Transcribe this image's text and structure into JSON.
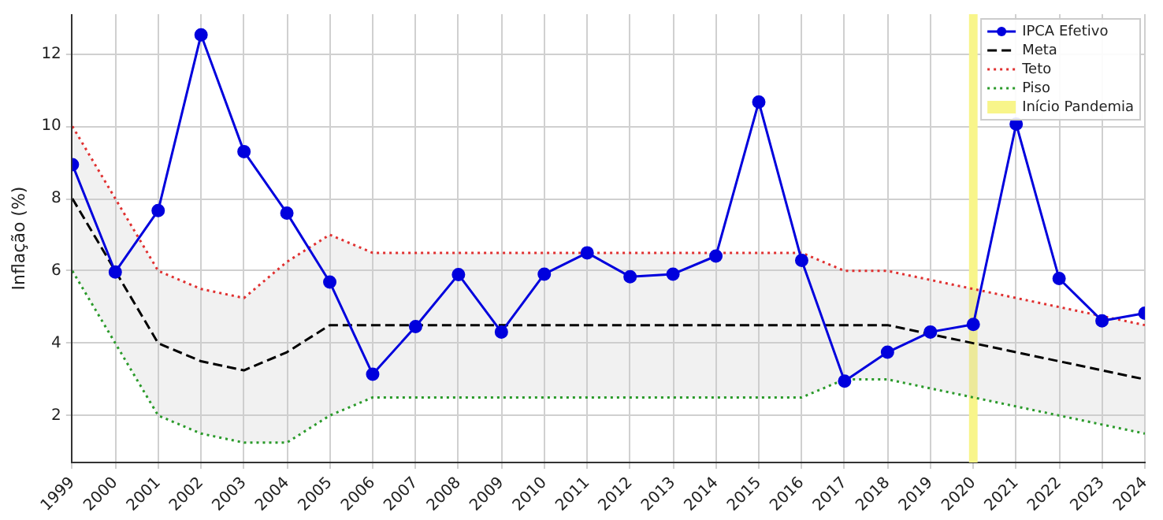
{
  "chart_data": {
    "type": "line",
    "ylabel": "Inflação (%)",
    "x": [
      1999,
      2000,
      2001,
      2002,
      2003,
      2004,
      2005,
      2006,
      2007,
      2008,
      2009,
      2010,
      2011,
      2012,
      2013,
      2014,
      2015,
      2016,
      2017,
      2018,
      2019,
      2020,
      2021,
      2022,
      2023,
      2024
    ],
    "xlim": [
      1999,
      2024
    ],
    "xticks": [
      1999,
      2000,
      2001,
      2002,
      2003,
      2004,
      2005,
      2006,
      2007,
      2008,
      2009,
      2010,
      2011,
      2012,
      2013,
      2014,
      2015,
      2016,
      2017,
      2018,
      2019,
      2020,
      2021,
      2022,
      2023,
      2024
    ],
    "ylim": [
      0.7,
      13.1
    ],
    "yticks": [
      2,
      4,
      6,
      8,
      10,
      12
    ],
    "series": [
      {
        "name": "IPCA Efetivo",
        "color": "#0000dd",
        "marker": "circle",
        "line_style": "solid",
        "values": [
          8.94,
          5.97,
          7.67,
          12.53,
          9.3,
          7.6,
          5.69,
          3.14,
          4.46,
          5.9,
          4.31,
          5.91,
          6.5,
          5.84,
          5.91,
          6.41,
          10.67,
          6.29,
          2.95,
          3.75,
          4.31,
          4.52,
          10.06,
          5.79,
          4.62,
          4.83
        ]
      },
      {
        "name": "Meta",
        "color": "#000000",
        "marker": "none",
        "line_style": "dashed",
        "values": [
          8,
          6,
          4,
          3.5,
          3.25,
          3.75,
          4.5,
          4.5,
          4.5,
          4.5,
          4.5,
          4.5,
          4.5,
          4.5,
          4.5,
          4.5,
          4.5,
          4.5,
          4.5,
          4.5,
          4.25,
          4,
          3.75,
          3.5,
          3.25,
          3
        ],
        "lower": [
          6,
          4,
          2,
          1.5,
          1.25,
          1.25,
          2,
          2.5,
          2.5,
          2.5,
          2.5,
          2.5,
          2.5,
          2.5,
          2.5,
          2.5,
          2.5,
          2.5,
          3,
          3,
          2.75,
          2.5,
          2.25,
          2,
          1.75,
          1.5
        ],
        "upper": [
          10,
          8,
          6,
          5.5,
          5.25,
          6.25,
          7,
          6.5,
          6.5,
          6.5,
          6.5,
          6.5,
          6.5,
          6.5,
          6.5,
          6.5,
          6.5,
          6.5,
          6,
          6,
          5.75,
          5.5,
          5.25,
          5,
          4.75,
          4.5
        ]
      },
      {
        "name": "Teto",
        "color": "#e03030",
        "marker": "none",
        "line_style": "dotted",
        "values": [
          10,
          8,
          6,
          5.5,
          5.25,
          6.25,
          7,
          6.5,
          6.5,
          6.5,
          6.5,
          6.5,
          6.5,
          6.5,
          6.5,
          6.5,
          6.5,
          6.5,
          6,
          6,
          5.75,
          5.5,
          5.25,
          5,
          4.75,
          4.5
        ]
      },
      {
        "name": "Piso",
        "color": "#2a9a2a",
        "marker": "none",
        "line_style": "dotted",
        "values": [
          6,
          4,
          2,
          1.5,
          1.25,
          1.25,
          2,
          2.5,
          2.5,
          2.5,
          2.5,
          2.5,
          2.5,
          2.5,
          2.5,
          2.5,
          2.5,
          2.5,
          3,
          3,
          2.75,
          2.5,
          2.25,
          2,
          1.75,
          1.5
        ]
      }
    ],
    "bands": [
      {
        "axis": "x",
        "from": 2019.9,
        "to": 2020.1,
        "label": "Início Pandemia",
        "color": "#f8f58a"
      }
    ],
    "grid": true,
    "legend": "top right"
  }
}
